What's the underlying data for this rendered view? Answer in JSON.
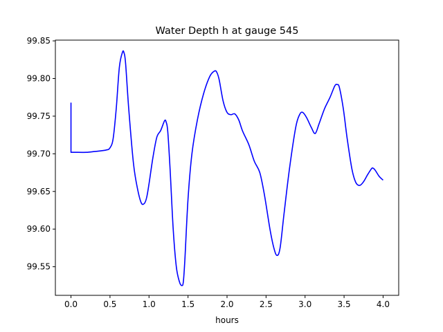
{
  "chart_data": {
    "type": "line",
    "title": "Water Depth h at gauge 545",
    "xlabel": "hours",
    "ylabel": "",
    "xlim": [
      -0.2,
      4.2
    ],
    "ylim": [
      99.512,
      99.851
    ],
    "grid": false,
    "x_ticks": [
      "0.0",
      "0.5",
      "1.0",
      "1.5",
      "2.0",
      "2.5",
      "3.0",
      "3.5",
      "4.0"
    ],
    "y_ticks": [
      "99.55",
      "99.60",
      "99.65",
      "99.70",
      "99.75",
      "99.80",
      "99.85"
    ],
    "series": [
      {
        "color": "#0000ff",
        "x": [
          0.0,
          0.0,
          0.05,
          0.2,
          0.3,
          0.45,
          0.5,
          0.54,
          0.58,
          0.62,
          0.66,
          0.68,
          0.7,
          0.74,
          0.8,
          0.85,
          0.9,
          0.94,
          0.97,
          1.0,
          1.05,
          1.1,
          1.15,
          1.2,
          1.22,
          1.24,
          1.27,
          1.31,
          1.35,
          1.39,
          1.42,
          1.44,
          1.46,
          1.5,
          1.55,
          1.62,
          1.7,
          1.78,
          1.84,
          1.87,
          1.9,
          1.95,
          2.0,
          2.05,
          2.1,
          2.15,
          2.2,
          2.28,
          2.35,
          2.42,
          2.48,
          2.55,
          2.6,
          2.64,
          2.68,
          2.73,
          2.8,
          2.88,
          2.93,
          2.97,
          3.02,
          3.08,
          3.13,
          3.18,
          3.25,
          3.32,
          3.38,
          3.41,
          3.44,
          3.49,
          3.54,
          3.6,
          3.65,
          3.7,
          3.75,
          3.8,
          3.85,
          3.87,
          3.9,
          3.95,
          4.0
        ],
        "y": [
          99.768,
          99.702,
          99.702,
          99.702,
          99.703,
          99.705,
          99.708,
          99.72,
          99.76,
          99.815,
          99.835,
          99.834,
          99.82,
          99.76,
          99.688,
          99.655,
          99.635,
          99.634,
          99.642,
          99.66,
          99.695,
          99.722,
          99.731,
          99.744,
          99.742,
          99.73,
          99.68,
          99.6,
          99.55,
          99.53,
          99.525,
          99.53,
          99.56,
          99.64,
          99.7,
          99.745,
          99.78,
          99.803,
          99.81,
          99.808,
          99.798,
          99.77,
          99.755,
          99.752,
          99.753,
          99.745,
          99.73,
          99.712,
          99.69,
          99.675,
          99.645,
          99.6,
          99.575,
          99.565,
          99.575,
          99.62,
          99.68,
          99.735,
          99.752,
          99.755,
          99.748,
          99.735,
          99.727,
          99.74,
          99.76,
          99.775,
          99.79,
          99.792,
          99.788,
          99.76,
          99.72,
          99.68,
          99.662,
          99.658,
          99.663,
          99.672,
          99.68,
          99.681,
          99.678,
          99.67,
          99.665
        ]
      }
    ]
  }
}
